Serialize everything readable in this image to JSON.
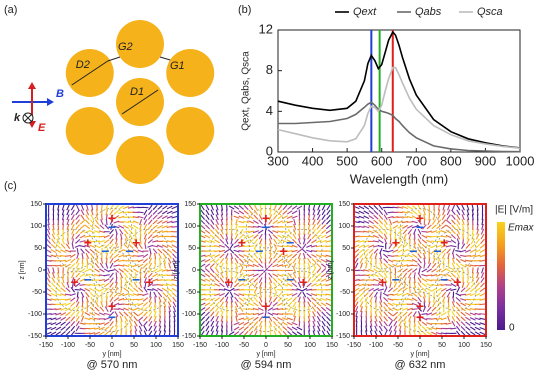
{
  "panel_a": {
    "label": "(a)",
    "labels": [
      "D2",
      "G2",
      "G1",
      "D1"
    ],
    "k": "k",
    "B": "B",
    "E": "E"
  },
  "chart_data": {
    "type": "line",
    "panel_label": "(b)",
    "x_label": "Wavelength (nm)",
    "y_label": "Qext, Qabs, Qsca",
    "x": [
      300,
      350,
      400,
      450,
      500,
      525,
      550,
      560,
      570,
      580,
      590,
      600,
      610,
      620,
      632,
      640,
      650,
      660,
      680,
      700,
      750,
      800,
      850,
      900,
      950,
      1000
    ],
    "series": [
      {
        "name": "Qext",
        "color": "#000000",
        "values": [
          5.0,
          4.6,
          4.3,
          4.1,
          4.3,
          5.0,
          7.0,
          8.7,
          9.5,
          9.0,
          8.2,
          8.6,
          9.8,
          11.0,
          11.8,
          11.5,
          10.5,
          9.3,
          7.2,
          5.6,
          3.2,
          2.0,
          1.3,
          0.9,
          0.6,
          0.4
        ]
      },
      {
        "name": "Qabs",
        "color": "#6b6b6b",
        "values": [
          2.8,
          2.8,
          2.9,
          3.0,
          3.3,
          3.7,
          4.4,
          4.7,
          4.9,
          4.6,
          4.2,
          4.0,
          3.9,
          3.8,
          3.6,
          3.3,
          3.0,
          2.6,
          1.9,
          1.4,
          0.6,
          0.3,
          0.15,
          0.1,
          0.05,
          0.03
        ]
      },
      {
        "name": "Qsca",
        "color": "#bdbdbd",
        "values": [
          2.2,
          1.8,
          1.4,
          1.1,
          1.0,
          1.3,
          2.6,
          3.8,
          4.5,
          4.4,
          4.0,
          4.6,
          6.0,
          7.2,
          8.3,
          8.3,
          7.6,
          6.8,
          5.3,
          4.2,
          2.6,
          1.7,
          1.1,
          0.8,
          0.55,
          0.37
        ]
      }
    ],
    "vlines": [
      {
        "x": 570,
        "color": "#1f3fd6"
      },
      {
        "x": 594,
        "color": "#22b022"
      },
      {
        "x": 632,
        "color": "#e0201a"
      }
    ],
    "xlim": [
      300,
      1000
    ],
    "xticks": [
      300,
      400,
      500,
      600,
      700,
      800,
      900,
      1000
    ],
    "ylim": [
      0,
      12
    ],
    "yticks": [
      0,
      4,
      8,
      12
    ],
    "legend": "top"
  },
  "panel_c": {
    "label": "(c)",
    "x_label": "y [nm]",
    "y_label": "z [nm]",
    "lim": [
      -150,
      150
    ],
    "ticks": [
      -150,
      -100,
      -50,
      0,
      50,
      100,
      150
    ],
    "colorbar": {
      "title": "|E| [V/m]",
      "max_label": "Emax",
      "min_label": "0"
    },
    "maps": [
      {
        "caption": "@ 570 nm",
        "frame_color": "#1f3fd6",
        "charges": [
          "+",
          "−",
          "+",
          "+",
          "−",
          "−",
          "+",
          "+",
          "−",
          "−",
          "+",
          "−"
        ]
      },
      {
        "caption": "@ 594 nm",
        "frame_color": "#22b022",
        "charges": [
          "+",
          "−",
          "+",
          "−",
          "−",
          "+",
          "+",
          "+",
          "−",
          "−",
          "+",
          "−"
        ]
      },
      {
        "caption": "@ 632 nm",
        "frame_color": "#e0201a",
        "charges": [
          "+",
          "−",
          "+",
          "+",
          "−",
          "−",
          "+",
          "+",
          "−",
          "−",
          "+",
          "+"
        ]
      }
    ]
  }
}
